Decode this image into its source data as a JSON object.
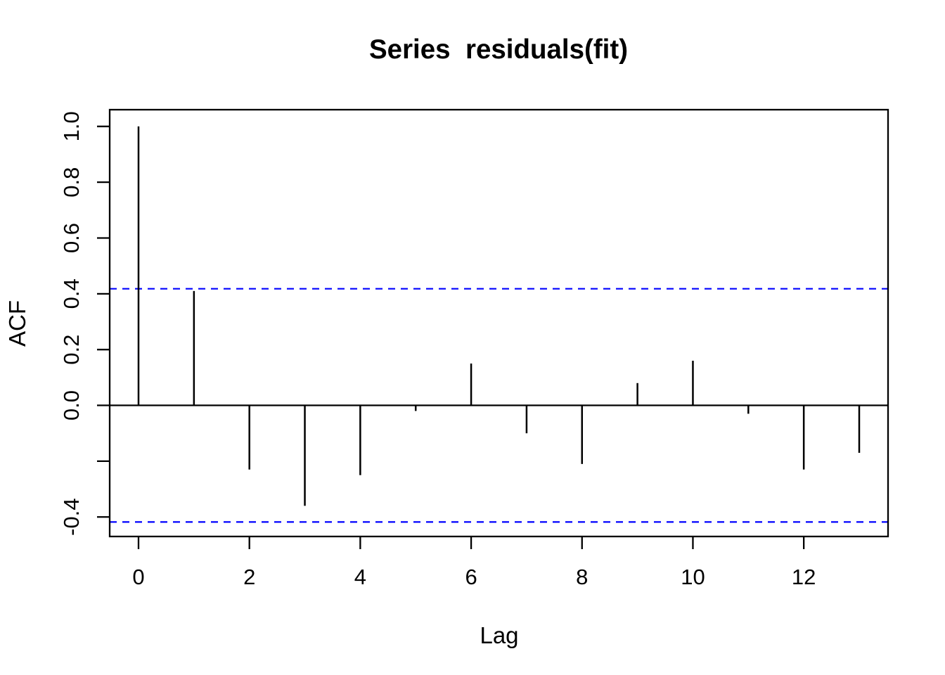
{
  "window": {
    "background_color": "#FFFFFF"
  },
  "chart_data": {
    "type": "bar",
    "subtype": "acf-stem-plot",
    "title": "Series  residuals(fit)",
    "xlabel": "Lag",
    "ylabel": "ACF",
    "lags": [
      0,
      1,
      2,
      3,
      4,
      5,
      6,
      7,
      8,
      9,
      10,
      11,
      12,
      13
    ],
    "acf_values": [
      1.0,
      0.41,
      -0.23,
      -0.36,
      -0.25,
      -0.02,
      0.15,
      -0.1,
      -0.21,
      0.08,
      0.16,
      -0.03,
      -0.23,
      -0.17
    ],
    "confidence_level": 0.418,
    "confidence_line": {
      "color": "#0000FF",
      "style": "dashed"
    },
    "x_ticks": [
      {
        "value": 0,
        "label": "0"
      },
      {
        "value": 2,
        "label": "2"
      },
      {
        "value": 4,
        "label": "4"
      },
      {
        "value": 6,
        "label": "6"
      },
      {
        "value": 8,
        "label": "8"
      },
      {
        "value": 10,
        "label": "10"
      },
      {
        "value": 12,
        "label": "12"
      }
    ],
    "y_ticks": [
      {
        "value": 1.0,
        "label": "1.0"
      },
      {
        "value": 0.8,
        "label": "0.8"
      },
      {
        "value": 0.6,
        "label": "0.6"
      },
      {
        "value": 0.4,
        "label": "0.4"
      },
      {
        "value": 0.2,
        "label": "0.2"
      },
      {
        "value": 0.0,
        "label": "0.0"
      },
      {
        "value": -0.2,
        "label": ""
      },
      {
        "value": -0.4,
        "label": "-0.4"
      }
    ],
    "xlim": [
      -0.52,
      13.52
    ],
    "ylim": [
      -0.47,
      1.06
    ],
    "grid": false,
    "legend_position": "none",
    "axis_color": "#000000",
    "bar_color": "#000000",
    "zero_line": true
  }
}
